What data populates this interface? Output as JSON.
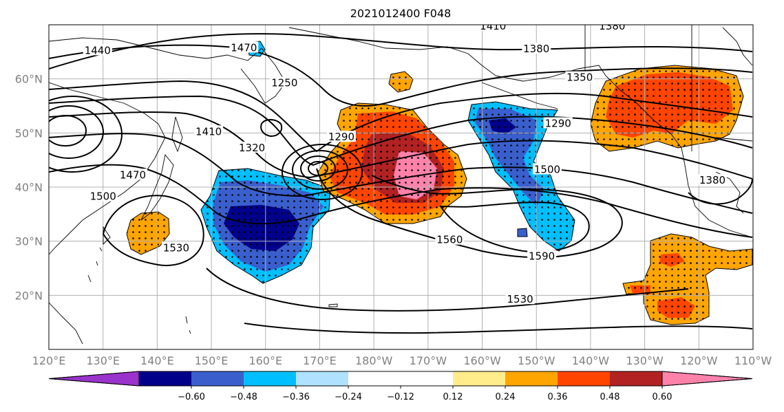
{
  "title": "2021012400 F048",
  "map": {
    "lon_range": [
      120,
      250
    ],
    "lat_range": [
      10,
      70
    ],
    "lon_ticks": [
      {
        "value": 120,
        "label": "120°E"
      },
      {
        "value": 130,
        "label": "130°E"
      },
      {
        "value": 140,
        "label": "140°E"
      },
      {
        "value": 150,
        "label": "150°E"
      },
      {
        "value": 160,
        "label": "160°E"
      },
      {
        "value": 170,
        "label": "170°E"
      },
      {
        "value": 180,
        "label": "180°W"
      },
      {
        "value": 190,
        "label": "170°W"
      },
      {
        "value": 200,
        "label": "160°W"
      },
      {
        "value": 210,
        "label": "150°W"
      },
      {
        "value": 220,
        "label": "140°W"
      },
      {
        "value": 230,
        "label": "130°W"
      },
      {
        "value": 240,
        "label": "120°W"
      },
      {
        "value": 250,
        "label": "110°W"
      }
    ],
    "lat_ticks": [
      {
        "value": 20,
        "label": "20°N"
      },
      {
        "value": 30,
        "label": "30°N"
      },
      {
        "value": 40,
        "label": "40°N"
      },
      {
        "value": 50,
        "label": "50°N"
      },
      {
        "value": 60,
        "label": "60°N"
      }
    ],
    "grid": true,
    "contour_labels": [
      {
        "text": "1440",
        "lon": 129,
        "lat": 65
      },
      {
        "text": "1470",
        "lon": 156,
        "lat": 65.5
      },
      {
        "text": "1410",
        "lon": 202,
        "lat": 69.5
      },
      {
        "text": "1380",
        "lon": 210,
        "lat": 65.3
      },
      {
        "text": "1380",
        "lon": 224,
        "lat": 69.5
      },
      {
        "text": "1350",
        "lon": 218,
        "lat": 60
      },
      {
        "text": "1250",
        "lon": 163.5,
        "lat": 59
      },
      {
        "text": "1290",
        "lon": 174,
        "lat": 49
      },
      {
        "text": "1290",
        "lon": 214,
        "lat": 51.5
      },
      {
        "text": "1320",
        "lon": 157.5,
        "lat": 47
      },
      {
        "text": "1410",
        "lon": 149.5,
        "lat": 50
      },
      {
        "text": "1470",
        "lon": 135.5,
        "lat": 42
      },
      {
        "text": "1500",
        "lon": 130,
        "lat": 38
      },
      {
        "text": "1500",
        "lon": 212,
        "lat": 43
      },
      {
        "text": "1380",
        "lon": 242.5,
        "lat": 41
      },
      {
        "text": "1530",
        "lon": 143.5,
        "lat": 28.5
      },
      {
        "text": "1530",
        "lon": 207,
        "lat": 19
      },
      {
        "text": "1560",
        "lon": 194,
        "lat": 30
      },
      {
        "text": "1590",
        "lon": 211,
        "lat": 27
      }
    ],
    "fill_colors": {
      "neg_extreme": "#9933cc",
      "neg_strong": "#00008b",
      "neg_mid": "#3a5fcd",
      "neg_weak": "#00bfff",
      "neg_faint": "#b0e2ff",
      "neutral": "#ffffff",
      "pos_faint": "#ffec8b",
      "pos_weak": "#ffa500",
      "pos_mid": "#ff4500",
      "pos_strong": "#b22222",
      "pos_extreme": "#ff82ab"
    }
  },
  "colorbar": {
    "colors": [
      "#9933cc",
      "#00008b",
      "#3a5fcd",
      "#00bfff",
      "#b0e2ff",
      "#ffffff",
      "#ffffff",
      "#ffec8b",
      "#ffa500",
      "#ff4500",
      "#b22222",
      "#ff82ab"
    ],
    "ticks": [
      "−0.60",
      "−0.48",
      "−0.36",
      "−0.24",
      "−0.12",
      "0.12",
      "0.24",
      "0.36",
      "0.48",
      "0.60"
    ]
  }
}
